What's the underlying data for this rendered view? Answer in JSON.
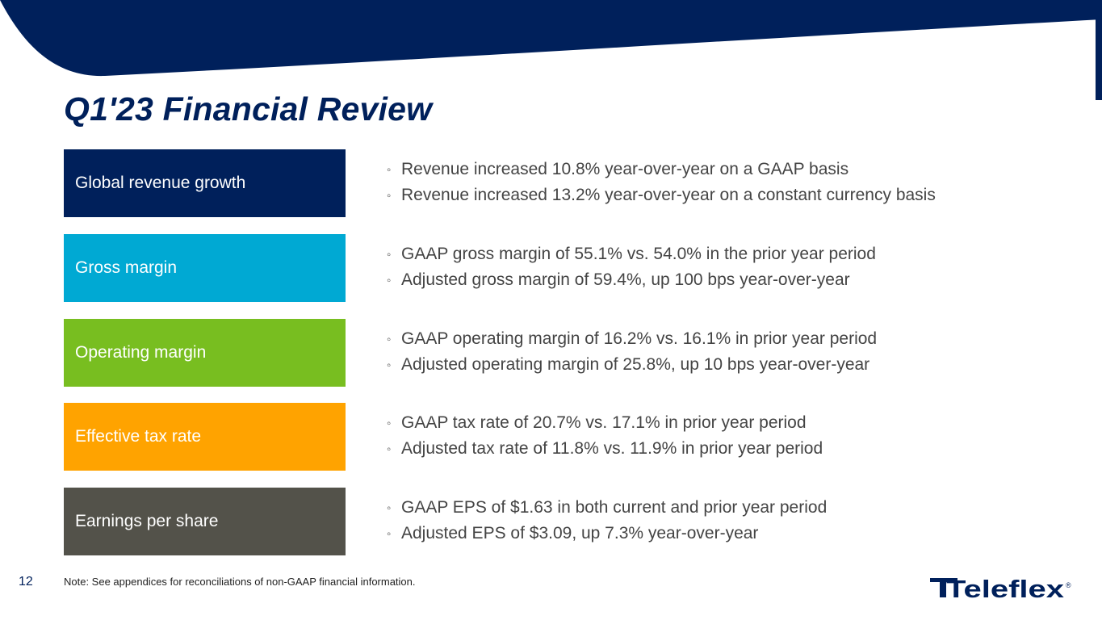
{
  "slide": {
    "title": "Q1'23 Financial Review",
    "page_number": "12",
    "footnote": "Note: See appendices for reconciliations of non-GAAP financial information."
  },
  "colors": {
    "navy": "#00205b",
    "cyan": "#00a9d3",
    "green": "#78be20",
    "orange": "#ffa300",
    "gray": "#53524a"
  },
  "bullet_marker": "◦",
  "rows": [
    {
      "label": "Global revenue growth",
      "bullets": [
        "Revenue increased 10.8% year-over-year on a GAAP basis",
        "Revenue increased 13.2% year-over-year on a constant currency basis"
      ]
    },
    {
      "label": "Gross margin",
      "bullets": [
        "GAAP gross margin of 55.1% vs. 54.0% in the prior year period",
        "Adjusted gross margin of 59.4%, up 100 bps year-over-year"
      ]
    },
    {
      "label": "Operating margin",
      "bullets": [
        "GAAP operating margin of 16.2% vs. 16.1% in prior year period",
        "Adjusted operating margin of 25.8%, up 10 bps year-over-year"
      ]
    },
    {
      "label": "Effective tax rate",
      "bullets": [
        "GAAP tax rate of 20.7% vs. 17.1% in prior year period",
        "Adjusted tax rate of 11.8% vs. 11.9% in prior year period"
      ]
    },
    {
      "label": "Earnings per share",
      "bullets": [
        "GAAP EPS of $1.63 in both current and prior year period",
        "Adjusted EPS of $3.09, up 7.3% year-over-year"
      ]
    }
  ],
  "logo": {
    "wordmark": "Teleflex",
    "registered": "®"
  }
}
